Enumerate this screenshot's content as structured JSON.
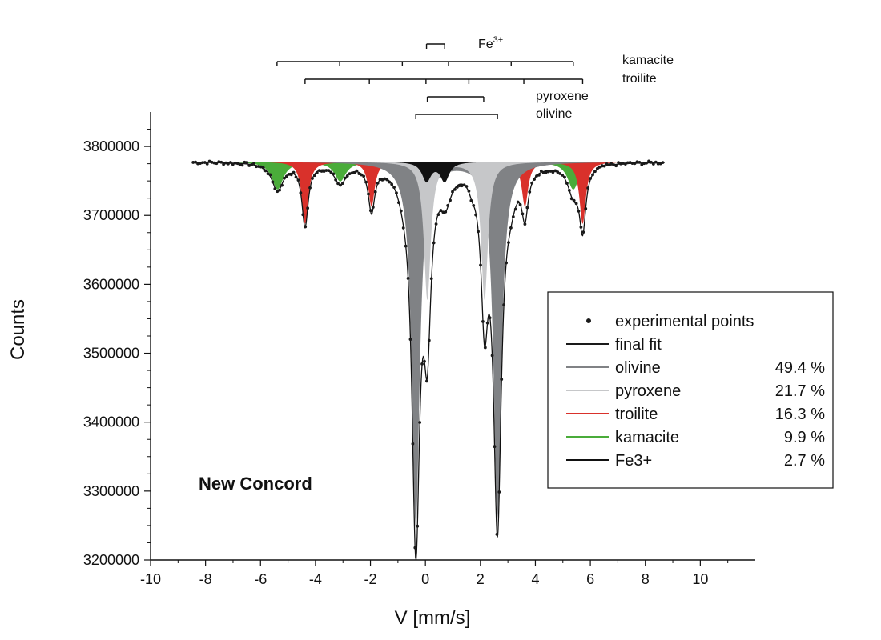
{
  "chart_data": {
    "type": "line",
    "xlabel": "V [mm/s]",
    "ylabel": "Counts",
    "xlim": [
      -10,
      12
    ],
    "ylim": [
      3200000,
      3850000
    ],
    "x_ticks": [
      -10,
      -8,
      -6,
      -4,
      -2,
      0,
      2,
      4,
      6,
      8,
      10
    ],
    "y_ticks": [
      3200000,
      3300000,
      3400000,
      3500000,
      3600000,
      3700000,
      3800000
    ],
    "x_tick_labels": [
      "-10",
      "-8",
      "-6",
      "-4",
      "-2",
      "0",
      "2",
      "4",
      "6",
      "8",
      "10"
    ],
    "y_tick_labels": [
      "3200000",
      "3300000",
      "3400000",
      "3500000",
      "3600000",
      "3700000",
      "3800000"
    ],
    "baseline": 3778000,
    "annotation": "New Concord",
    "legend_placement": "lower-right",
    "legend": [
      {
        "label": "experimental points",
        "value": "",
        "marker": "dot",
        "color": "#1a1a1a"
      },
      {
        "label": "final fit",
        "value": "",
        "marker": "line",
        "color": "#1a1a1a"
      },
      {
        "label": "olivine",
        "value": "49.4 %",
        "marker": "line",
        "color": "#808285"
      },
      {
        "label": "pyroxene",
        "value": "21.7 %",
        "marker": "line",
        "color": "#c6c7c9"
      },
      {
        "label": "troilite",
        "value": "16.3 %",
        "marker": "line",
        "color": "#d9312b"
      },
      {
        "label": "kamacite",
        "value": "9.9 %",
        "marker": "line",
        "color": "#4aac3a"
      },
      {
        "label": "Fe3+",
        "value": "2.7 %",
        "marker": "line",
        "color": "#111111"
      }
    ],
    "components": [
      {
        "name": "kamacite",
        "color": "#4aac3a",
        "width": 0.5,
        "lines": [
          [
            -5.38,
            40000
          ],
          [
            -3.1,
            28000
          ],
          [
            -0.82,
            15000
          ],
          [
            0.82,
            15000
          ],
          [
            3.1,
            28000
          ],
          [
            5.38,
            40000
          ]
        ]
      },
      {
        "name": "troilite",
        "color": "#d9312b",
        "width": 0.28,
        "lines": [
          [
            -4.38,
            90000
          ],
          [
            -1.96,
            65000
          ],
          [
            -0.3,
            12000
          ],
          [
            1.7,
            12000
          ],
          [
            3.62,
            65000
          ],
          [
            5.72,
            90000
          ]
        ]
      },
      {
        "name": "olivine",
        "color": "#808285",
        "width": 0.34,
        "lines": [
          [
            -0.35,
            530000
          ],
          [
            2.62,
            515000
          ]
        ]
      },
      {
        "name": "pyroxene",
        "color": "#c6c7c9",
        "width": 0.3,
        "lines": [
          [
            0.07,
            200000
          ],
          [
            2.15,
            200000
          ]
        ]
      },
      {
        "name": "Fe3+",
        "color": "#111111",
        "width": 0.4,
        "lines": [
          [
            0.04,
            28000
          ],
          [
            0.7,
            28000
          ]
        ]
      }
    ],
    "stick_diagrams": [
      {
        "label": "Fe3+",
        "label_base": "Fe",
        "label_sup": "3+",
        "x_min": 0.04,
        "x_max": 0.7,
        "ticks": [
          0.04,
          0.7
        ]
      },
      {
        "label": "kamacite",
        "x_min": -5.4,
        "x_max": 5.38,
        "ticks": [
          -5.4,
          -3.12,
          -0.84,
          0.84,
          3.12,
          5.38
        ]
      },
      {
        "label": "troilite",
        "x_min": -4.38,
        "x_max": 5.72,
        "ticks": [
          -4.38,
          -2.04,
          0.02,
          1.58,
          3.58,
          5.72
        ]
      },
      {
        "label": "pyroxene",
        "x_min": 0.07,
        "x_max": 2.12,
        "ticks": [
          0.07,
          2.12
        ]
      },
      {
        "label": "olivine",
        "x_min": -0.35,
        "x_max": 2.62,
        "ticks": [
          -0.35,
          2.62
        ]
      }
    ]
  }
}
